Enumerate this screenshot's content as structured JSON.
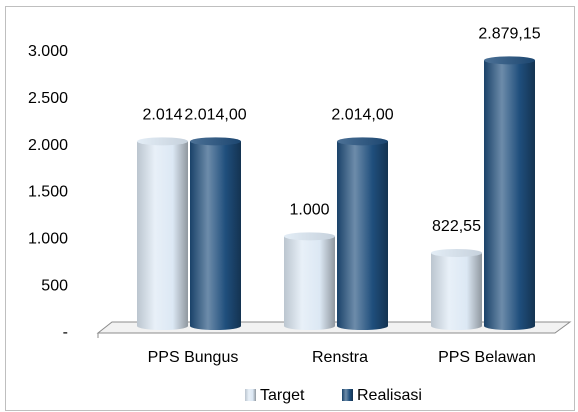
{
  "chart_data": {
    "type": "bar3d",
    "categories": [
      "PPS Bungus",
      "Renstra",
      "PPS Belawan"
    ],
    "series": [
      {
        "name": "Target",
        "color": "#dce8f4",
        "values": [
          2014,
          1000,
          822.55
        ],
        "value_labels": [
          "2.014",
          "1.000",
          "822,55"
        ]
      },
      {
        "name": "Realisasi",
        "color": "#1f4e7c",
        "values": [
          2014,
          2014,
          2879.15
        ],
        "value_labels": [
          "2.014,00",
          "2.014,00",
          "2.879,15"
        ]
      }
    ],
    "ylim": [
      0,
      3000
    ],
    "yticks": [
      {
        "value": 0,
        "label": "-"
      },
      500,
      {
        "value": 1000,
        "label": "1.000"
      },
      {
        "value": 1500,
        "label": "1.500"
      },
      {
        "value": 2000,
        "label": "2.000"
      },
      {
        "value": 2500,
        "label": "2.500"
      },
      {
        "value": 3000,
        "label": "3.000"
      }
    ],
    "legend": "bottom"
  }
}
